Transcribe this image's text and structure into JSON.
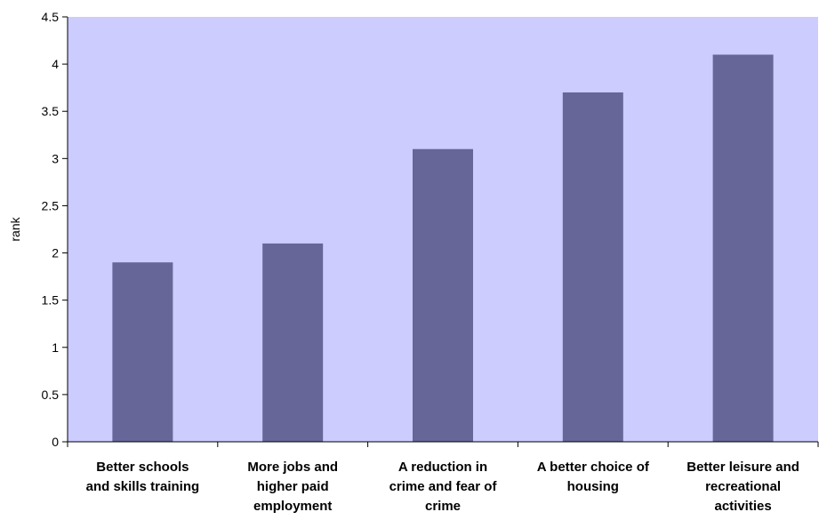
{
  "chart_data": {
    "type": "bar",
    "categories": [
      [
        "Better schools",
        "and skills training"
      ],
      [
        "More jobs and",
        "higher paid",
        "employment"
      ],
      [
        "A reduction in",
        "crime and fear of",
        "crime"
      ],
      [
        "A better choice of",
        "housing"
      ],
      [
        "Better leisure and",
        "recreational",
        "activities"
      ]
    ],
    "values": [
      1.9,
      2.1,
      3.1,
      3.7,
      4.1
    ],
    "ylabel": "rank",
    "ylim": [
      0,
      4.5
    ],
    "yticks": [
      0,
      0.5,
      1,
      1.5,
      2,
      2.5,
      3,
      3.5,
      4,
      4.5
    ],
    "ytick_labels": [
      "0",
      "0.5",
      "1",
      "1.5",
      "2",
      "2.5",
      "3",
      "3.5",
      "4",
      "4.5"
    ],
    "grid": false,
    "colors": {
      "plot_background": "#ccccff",
      "bar": "#666699",
      "axis": "#000000"
    }
  }
}
